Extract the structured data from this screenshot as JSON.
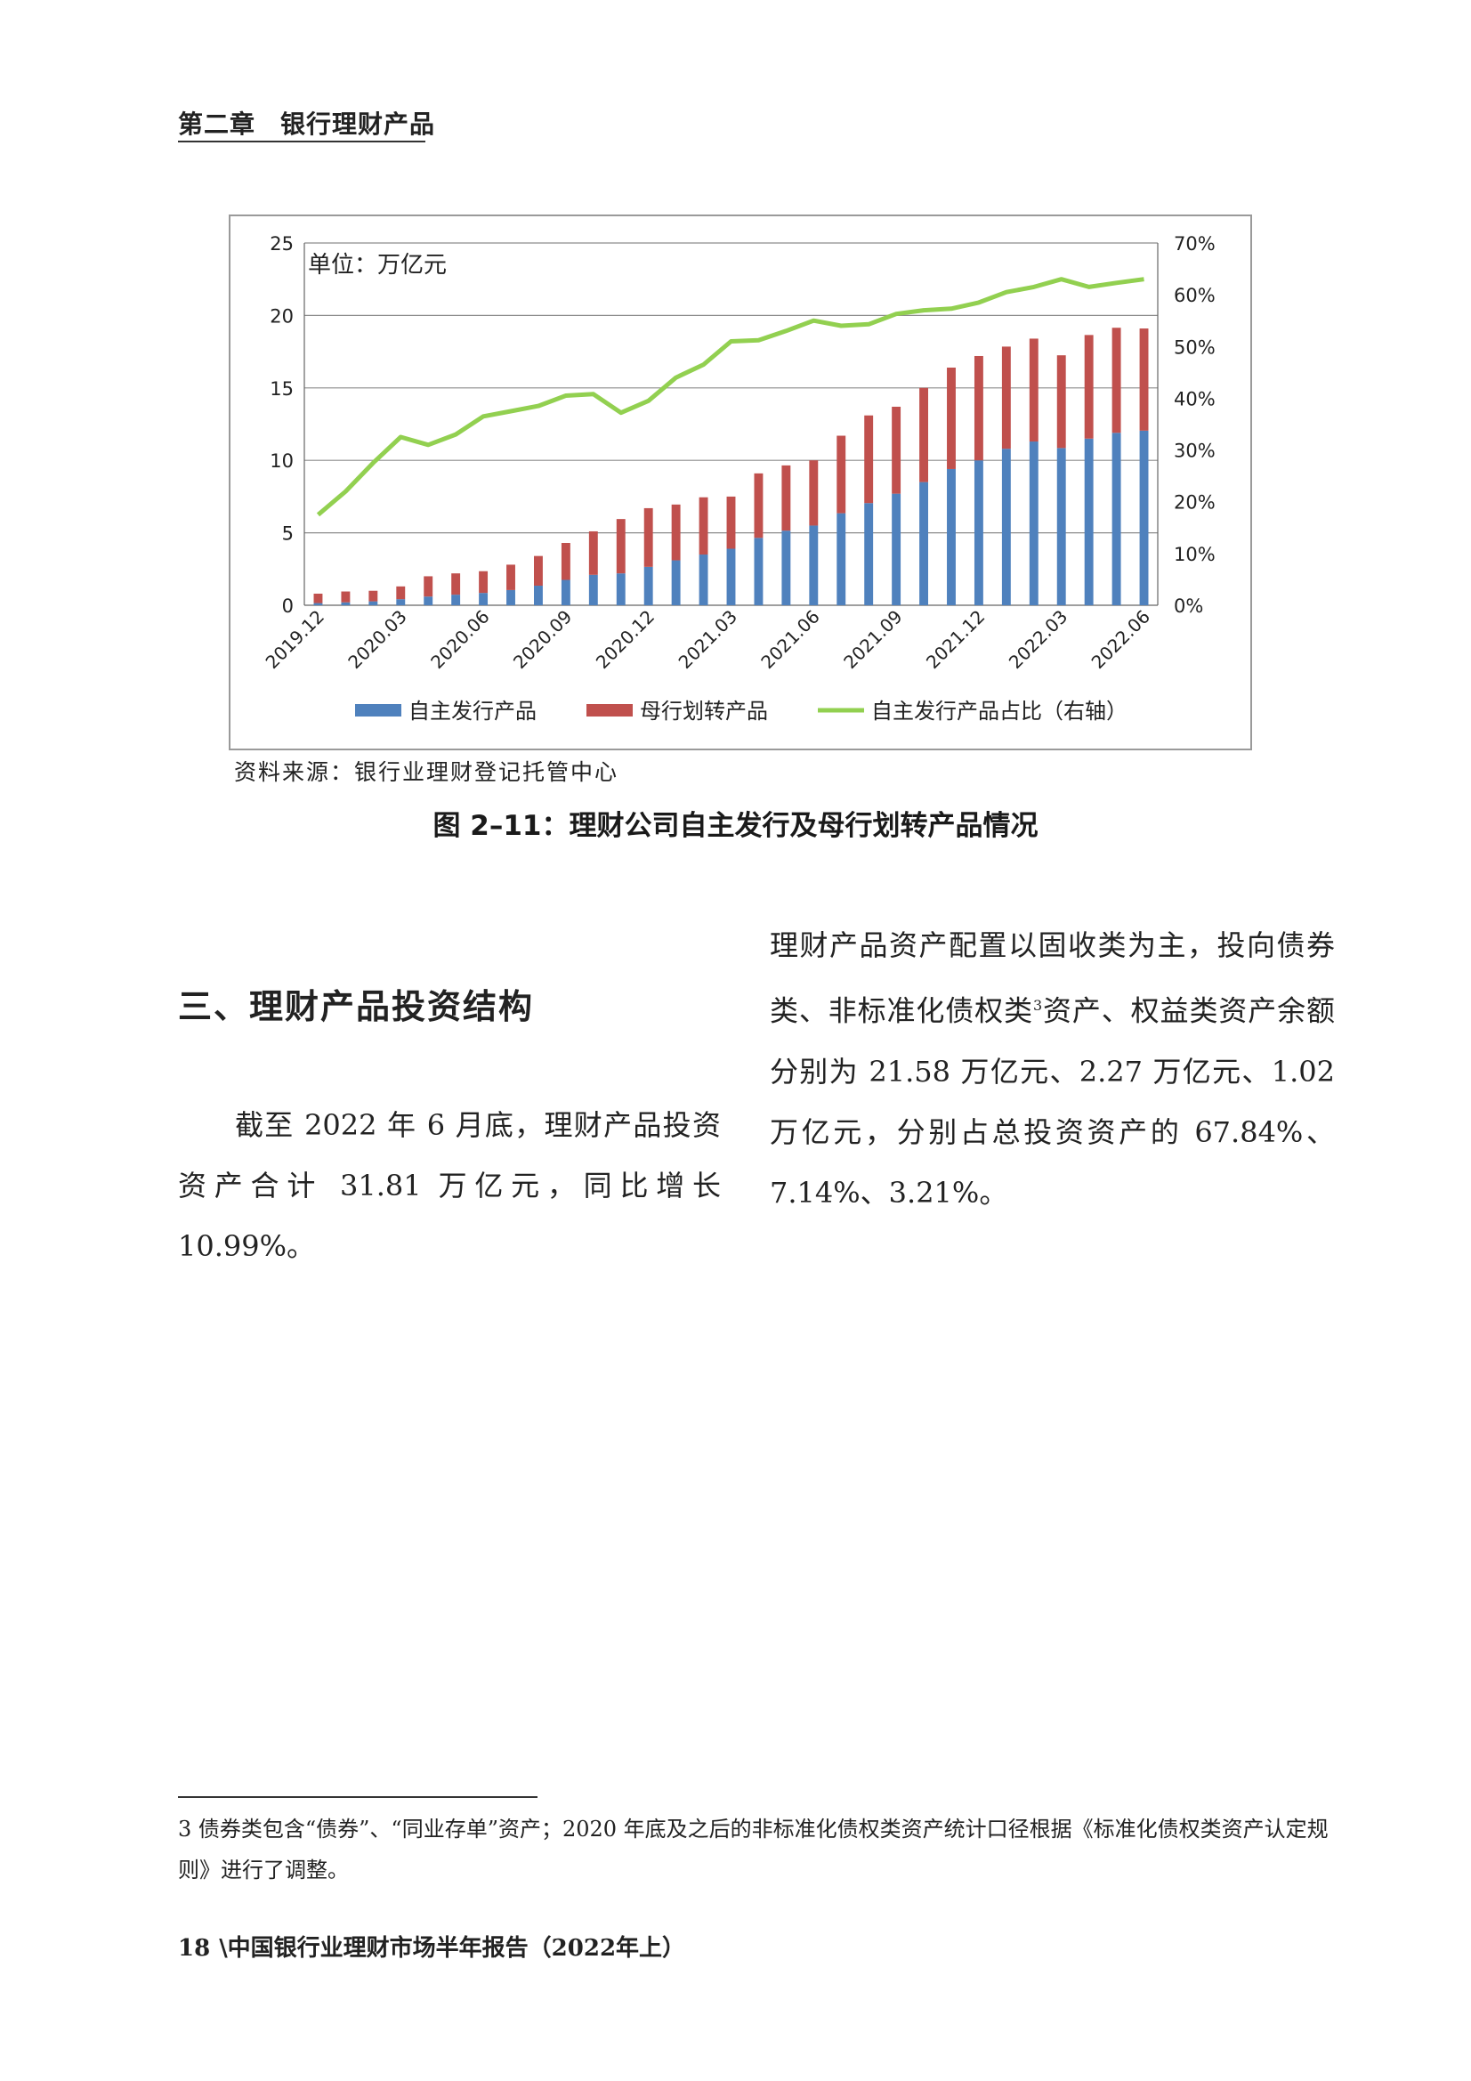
{
  "header": {
    "chapter": "第二章",
    "title": "银行理财产品"
  },
  "figure": {
    "source": "资料来源：银行业理财登记托管中心",
    "caption": "图 2–11：理财公司自主发行及母行划转产品情况"
  },
  "chart_data": {
    "type": "bar",
    "unit_label": "单位：万亿元",
    "categories": [
      "2019.12",
      "2020.01",
      "2020.02",
      "2020.03",
      "2020.04",
      "2020.05",
      "2020.06",
      "2020.07",
      "2020.08",
      "2020.09",
      "2020.10",
      "2020.11",
      "2020.12",
      "2021.01",
      "2021.02",
      "2021.03",
      "2021.04",
      "2021.05",
      "2021.06",
      "2021.07",
      "2021.08",
      "2021.09",
      "2021.10",
      "2021.11",
      "2021.12",
      "2022.01",
      "2022.02",
      "2022.03",
      "2022.04",
      "2022.05",
      "2022.06"
    ],
    "x_tick_labels": [
      "2019.12",
      "2020.03",
      "2020.06",
      "2020.09",
      "2020.12",
      "2021.03",
      "2021.06",
      "2021.09",
      "2021.12",
      "2022.03",
      "2022.06"
    ],
    "series": [
      {
        "name": "自主发行产品",
        "kind": "stacked-bar",
        "axis": "left",
        "color": "#4f81bd",
        "values": [
          0.15,
          0.2,
          0.27,
          0.42,
          0.6,
          0.73,
          0.85,
          1.05,
          1.35,
          1.75,
          2.1,
          2.2,
          2.65,
          3.1,
          3.5,
          3.9,
          4.65,
          5.15,
          5.5,
          6.35,
          7.05,
          7.7,
          8.5,
          9.4,
          10.0,
          10.8,
          11.3,
          10.85,
          11.5,
          11.9,
          12.05
        ]
      },
      {
        "name": "母行划转产品",
        "kind": "stacked-bar",
        "axis": "left",
        "color": "#c0504d",
        "values": [
          0.65,
          0.75,
          0.73,
          0.88,
          1.4,
          1.47,
          1.5,
          1.75,
          2.05,
          2.55,
          3.0,
          3.75,
          4.05,
          3.85,
          3.95,
          3.6,
          4.45,
          4.5,
          4.5,
          5.35,
          6.05,
          6.0,
          6.5,
          7.0,
          7.2,
          7.05,
          7.1,
          6.4,
          7.15,
          7.25,
          7.05
        ]
      },
      {
        "name": "自主发行产品占比（右轴）",
        "kind": "line",
        "axis": "right",
        "color": "#92d050",
        "values": [
          17.5,
          22,
          27.5,
          32.5,
          31,
          33,
          36.5,
          37.5,
          38.5,
          40.5,
          40.8,
          37.2,
          39.5,
          44,
          46.5,
          51,
          51.2,
          53,
          55,
          54,
          54.3,
          56.3,
          57,
          57.3,
          58.5,
          60.5,
          61.5,
          63,
          61.5,
          62.3,
          63
        ]
      }
    ],
    "y_left": {
      "min": 0,
      "max": 25,
      "ticks": [
        "0",
        "5",
        "10",
        "15",
        "20",
        "25"
      ]
    },
    "y_right": {
      "min": 0,
      "max": 70,
      "ticks": [
        "0%",
        "10%",
        "20%",
        "30%",
        "40%",
        "50%",
        "60%",
        "70%"
      ]
    },
    "grid": true,
    "legend_position": "bottom"
  },
  "section": {
    "title": "三、理财产品投资结构"
  },
  "body": {
    "left": "截至 2022 年 6 月底，理财产品投资资产合计 31.81 万亿元，同比增长 10.99%。",
    "right_a": "理财产品资产配置以固收类为主，投向债券类、非标准化债权类",
    "right_sup": "3",
    "right_b": "资产、权益类资产余额分别为 21.58 万亿元、2.27 万亿元、1.02 万亿元，分别占总投资资产的 67.84%、7.14%、3.21%。"
  },
  "footnote": "3 债券类包含“债券”、“同业存单”资产；2020 年底及之后的非标准化债权类资产统计口径根据《标准化债权类资产认定规则》进行了调整。",
  "footer": {
    "page_number": "18",
    "text": "\\中国银行业理财市场半年报告（2022年上）"
  }
}
